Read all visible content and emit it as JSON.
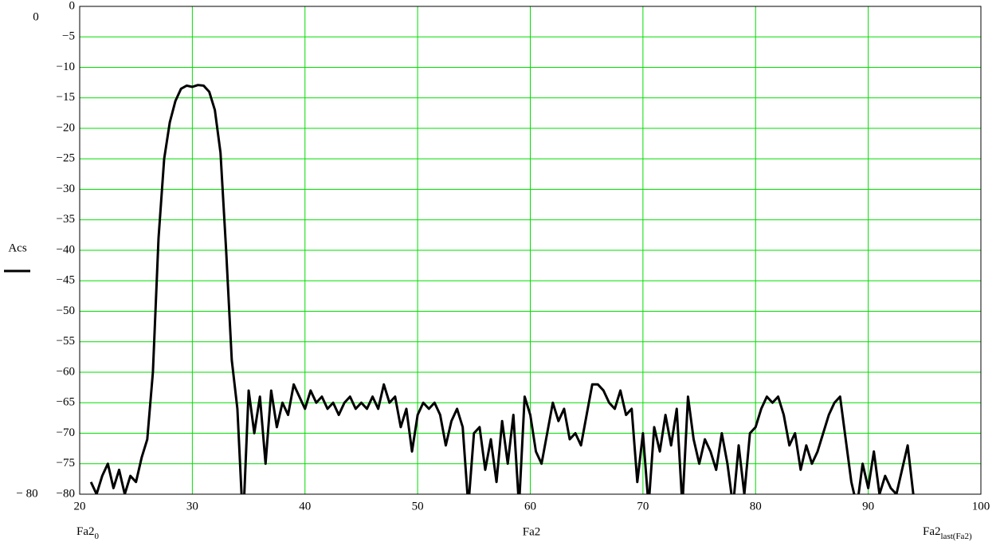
{
  "chart_data": {
    "type": "line",
    "y_label": "Acs",
    "ylim_labels": {
      "top": "0",
      "bottom": "− 80"
    },
    "x_labels": {
      "left": {
        "text": "Fa2",
        "sub": "0"
      },
      "center": "Fa2",
      "right": {
        "text": "Fa2",
        "sub": "last(Fa2)"
      }
    },
    "xlim": [
      20,
      100
    ],
    "ylim": [
      -80,
      0
    ],
    "xticks": [
      20,
      30,
      40,
      50,
      60,
      70,
      80,
      90,
      100
    ],
    "yticks": [
      0,
      {
        "value": -5,
        "label": "−5"
      },
      {
        "value": -10,
        "label": "−10"
      },
      {
        "value": -15,
        "label": "−15"
      },
      {
        "value": -20,
        "label": "−20"
      },
      {
        "value": -25,
        "label": "−25"
      },
      {
        "value": -30,
        "label": "−30"
      },
      {
        "value": -35,
        "label": "−35"
      },
      {
        "value": -40,
        "label": "−40"
      },
      {
        "value": -45,
        "label": "−45"
      },
      {
        "value": -50,
        "label": "−50"
      },
      {
        "value": -55,
        "label": "−55"
      },
      {
        "value": -60,
        "label": "−60"
      },
      {
        "value": -65,
        "label": "−65"
      },
      {
        "value": -70,
        "label": "−70"
      },
      {
        "value": -75,
        "label": "−75"
      },
      {
        "value": -80,
        "label": "−80"
      }
    ],
    "grid": true,
    "grid_color": "#00dd00",
    "x": [
      21,
      21.5,
      22,
      22.5,
      23,
      23.5,
      24,
      24.5,
      25,
      25.5,
      26,
      26.5,
      27,
      27.5,
      28,
      28.5,
      29,
      29.5,
      30,
      30.5,
      31,
      31.5,
      32,
      32.5,
      33,
      33.5,
      34,
      34.5,
      35,
      35.5,
      36,
      36.5,
      37,
      37.5,
      38,
      38.5,
      39,
      39.5,
      40,
      40.5,
      41,
      41.5,
      42,
      42.5,
      43,
      43.5,
      44,
      44.5,
      45,
      45.5,
      46,
      46.5,
      47,
      47.5,
      48,
      48.5,
      49,
      49.5,
      50,
      50.5,
      51,
      51.5,
      52,
      52.5,
      53,
      53.5,
      54,
      54.5,
      55,
      55.5,
      56,
      56.5,
      57,
      57.5,
      58,
      58.5,
      59,
      59.5,
      60,
      60.5,
      61,
      61.5,
      62,
      62.5,
      63,
      63.5,
      64,
      64.5,
      65,
      65.5,
      66,
      66.5,
      67,
      67.5,
      68,
      68.5,
      69,
      69.5,
      70,
      70.5,
      71,
      71.5,
      72,
      72.5,
      73,
      73.5,
      74,
      74.5,
      75,
      75.5,
      76,
      76.5,
      77,
      77.5,
      78,
      78.5,
      79,
      79.5,
      80,
      80.5,
      81,
      81.5,
      82,
      82.5,
      83,
      83.5,
      84,
      84.5,
      85,
      85.5,
      86,
      86.5,
      87,
      87.5,
      88,
      88.5,
      89,
      89.5,
      90,
      90.5,
      91,
      91.5,
      92,
      92.5,
      93,
      93.5,
      94
    ],
    "series": [
      {
        "name": "Acs",
        "color": "#000000",
        "values": [
          -78,
          -80,
          -77,
          -75,
          -79,
          -76,
          -80,
          -77,
          -78,
          -74,
          -71,
          -60,
          -38,
          -25,
          -19,
          -15.5,
          -13.5,
          -13,
          -13.2,
          -12.9,
          -13,
          -14,
          -17,
          -24,
          -40,
          -58,
          -66,
          -85,
          -63,
          -70,
          -64,
          -75,
          -63,
          -69,
          -65,
          -67,
          -62,
          -64,
          -66,
          -63,
          -65,
          -64,
          -66,
          -65,
          -67,
          -65,
          -64,
          -66,
          -65,
          -66,
          -64,
          -66,
          -62,
          -65,
          -64,
          -69,
          -66,
          -73,
          -67,
          -65,
          -66,
          -65,
          -67,
          -72,
          -68,
          -66,
          -69,
          -82,
          -70,
          -69,
          -76,
          -71,
          -78,
          -68,
          -75,
          -67,
          -82,
          -64,
          -67,
          -73,
          -75,
          -70,
          -65,
          -68,
          -66,
          -71,
          -70,
          -72,
          -67,
          -62,
          -62,
          -63,
          -65,
          -66,
          -63,
          -67,
          -66,
          -78,
          -70,
          -82,
          -69,
          -73,
          -67,
          -72,
          -66,
          -82,
          -64,
          -71,
          -75,
          -71,
          -73,
          -76,
          -70,
          -75,
          -82,
          -72,
          -80,
          -70,
          -69,
          -66,
          -64,
          -65,
          -64,
          -67,
          -72,
          -70,
          -76,
          -72,
          -75,
          -73,
          -70,
          -67,
          -65,
          -64,
          -71,
          -78,
          -82,
          -75,
          -79,
          -73,
          -80,
          -77,
          -79,
          -80,
          -76,
          -72,
          -80
        ]
      }
    ]
  }
}
